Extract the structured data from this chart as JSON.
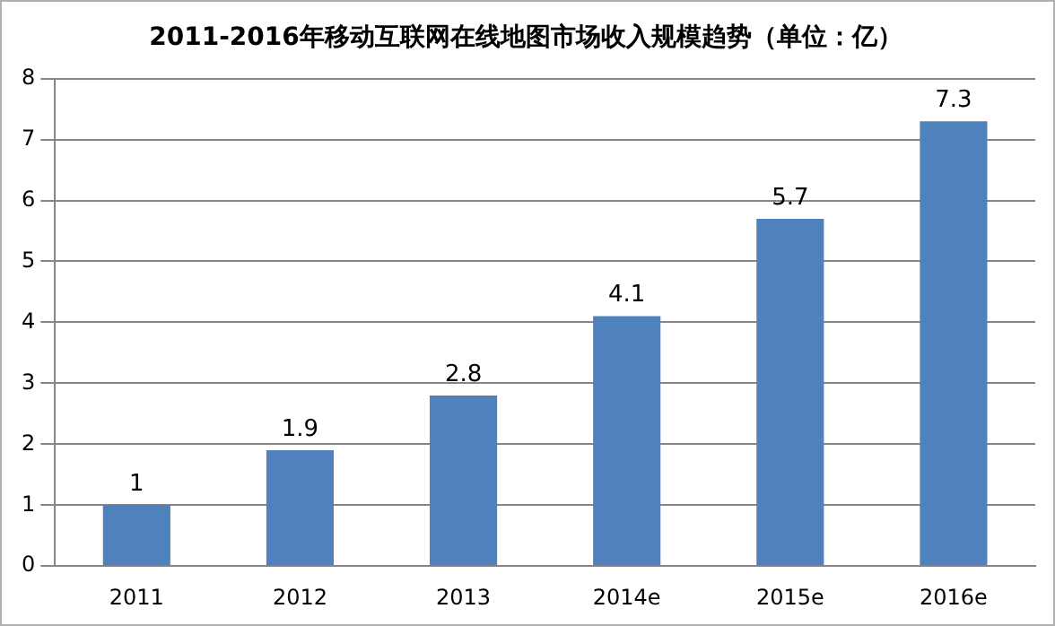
{
  "chart_data": {
    "type": "bar",
    "title": "2011-2016年移动互联网在线地图市场收入规模趋势（单位：亿）",
    "categories": [
      "2011",
      "2012",
      "2013",
      "2014e",
      "2015e",
      "2016e"
    ],
    "values": [
      1,
      1.9,
      2.8,
      4.1,
      5.7,
      7.3
    ],
    "color": "#4f81bd",
    "ylim": [
      0,
      8
    ],
    "yticks": [
      0,
      1,
      2,
      3,
      4,
      5,
      6,
      7,
      8
    ],
    "grid": "y",
    "data_labels": true
  }
}
